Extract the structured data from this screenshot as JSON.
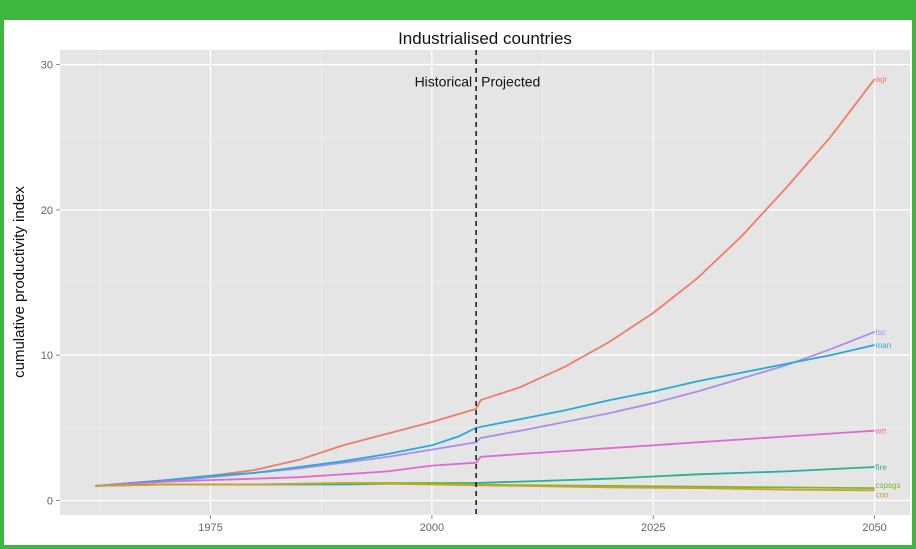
{
  "chart_data": {
    "type": "line",
    "title": "Industrialised countries",
    "xlabel": "",
    "ylabel": "cumulative productivity index",
    "xlim": [
      1958,
      2054
    ],
    "ylim": [
      -1,
      31
    ],
    "xticks": [
      1975,
      2000,
      2025,
      2050
    ],
    "yticks": [
      0,
      10,
      20,
      30
    ],
    "grid": true,
    "legend": "none",
    "vline": {
      "x": 2005,
      "left_label": "Historical",
      "right_label": "Projected"
    },
    "series": [
      {
        "name": "agr",
        "color": "#f07c6b",
        "points": [
          [
            1962,
            1.0
          ],
          [
            1970,
            1.4
          ],
          [
            1975,
            1.7
          ],
          [
            1980,
            2.1
          ],
          [
            1985,
            2.8
          ],
          [
            1990,
            3.8
          ],
          [
            1995,
            4.6
          ],
          [
            2000,
            5.4
          ],
          [
            2005,
            6.3
          ],
          [
            2005.5,
            6.9
          ],
          [
            2010,
            7.8
          ],
          [
            2015,
            9.2
          ],
          [
            2020,
            10.9
          ],
          [
            2025,
            12.9
          ],
          [
            2030,
            15.3
          ],
          [
            2035,
            18.2
          ],
          [
            2040,
            21.5
          ],
          [
            2045,
            25.0
          ],
          [
            2050,
            29.0
          ]
        ]
      },
      {
        "name": "tsc",
        "color": "#a98ef0",
        "points": [
          [
            1962,
            1.0
          ],
          [
            1970,
            1.3
          ],
          [
            1975,
            1.6
          ],
          [
            1980,
            1.9
          ],
          [
            1985,
            2.2
          ],
          [
            1990,
            2.6
          ],
          [
            1995,
            3.0
          ],
          [
            2000,
            3.5
          ],
          [
            2005,
            4.0
          ],
          [
            2005.5,
            4.3
          ],
          [
            2010,
            4.8
          ],
          [
            2015,
            5.4
          ],
          [
            2020,
            6.0
          ],
          [
            2025,
            6.7
          ],
          [
            2030,
            7.5
          ],
          [
            2035,
            8.4
          ],
          [
            2040,
            9.3
          ],
          [
            2045,
            10.4
          ],
          [
            2050,
            11.6
          ]
        ]
      },
      {
        "name": "man",
        "color": "#29a9d9",
        "points": [
          [
            1962,
            1.0
          ],
          [
            1970,
            1.4
          ],
          [
            1975,
            1.7
          ],
          [
            1980,
            1.9
          ],
          [
            1985,
            2.3
          ],
          [
            1990,
            2.7
          ],
          [
            1995,
            3.2
          ],
          [
            2000,
            3.8
          ],
          [
            2003,
            4.4
          ],
          [
            2005,
            5.0
          ],
          [
            2010,
            5.6
          ],
          [
            2015,
            6.2
          ],
          [
            2020,
            6.9
          ],
          [
            2025,
            7.5
          ],
          [
            2030,
            8.2
          ],
          [
            2035,
            8.8
          ],
          [
            2040,
            9.4
          ],
          [
            2045,
            10.0
          ],
          [
            2050,
            10.7
          ]
        ]
      },
      {
        "name": "wrt",
        "color": "#e06ad4",
        "points": [
          [
            1962,
            1.0
          ],
          [
            1970,
            1.3
          ],
          [
            1975,
            1.4
          ],
          [
            1980,
            1.5
          ],
          [
            1985,
            1.6
          ],
          [
            1990,
            1.8
          ],
          [
            1995,
            2.0
          ],
          [
            2000,
            2.4
          ],
          [
            2005,
            2.6
          ],
          [
            2005.5,
            3.0
          ],
          [
            2010,
            3.2
          ],
          [
            2015,
            3.4
          ],
          [
            2020,
            3.6
          ],
          [
            2025,
            3.8
          ],
          [
            2030,
            4.0
          ],
          [
            2035,
            4.2
          ],
          [
            2040,
            4.4
          ],
          [
            2045,
            4.6
          ],
          [
            2050,
            4.8
          ]
        ]
      },
      {
        "name": "fire",
        "color": "#27b392",
        "points": [
          [
            1962,
            1.0
          ],
          [
            1970,
            1.1
          ],
          [
            1980,
            1.1
          ],
          [
            1990,
            1.1
          ],
          [
            2000,
            1.2
          ],
          [
            2005,
            1.2
          ],
          [
            2010,
            1.3
          ],
          [
            2020,
            1.5
          ],
          [
            2030,
            1.8
          ],
          [
            2040,
            2.0
          ],
          [
            2050,
            2.3
          ]
        ]
      },
      {
        "name": "cspsgs",
        "color": "#7cb82e",
        "points": [
          [
            1962,
            1.0
          ],
          [
            1970,
            1.1
          ],
          [
            1980,
            1.1
          ],
          [
            1990,
            1.2
          ],
          [
            2000,
            1.2
          ],
          [
            2005,
            1.1
          ],
          [
            2010,
            1.05
          ],
          [
            2020,
            1.0
          ],
          [
            2030,
            0.95
          ],
          [
            2040,
            0.9
          ],
          [
            2050,
            0.85
          ]
        ]
      },
      {
        "name": "con",
        "color": "#c9a232",
        "points": [
          [
            1962,
            1.0
          ],
          [
            1970,
            1.1
          ],
          [
            1980,
            1.1
          ],
          [
            1990,
            1.2
          ],
          [
            2000,
            1.1
          ],
          [
            2005,
            1.05
          ],
          [
            2010,
            1.0
          ],
          [
            2020,
            0.9
          ],
          [
            2030,
            0.85
          ],
          [
            2040,
            0.75
          ],
          [
            2050,
            0.7
          ]
        ]
      }
    ]
  }
}
